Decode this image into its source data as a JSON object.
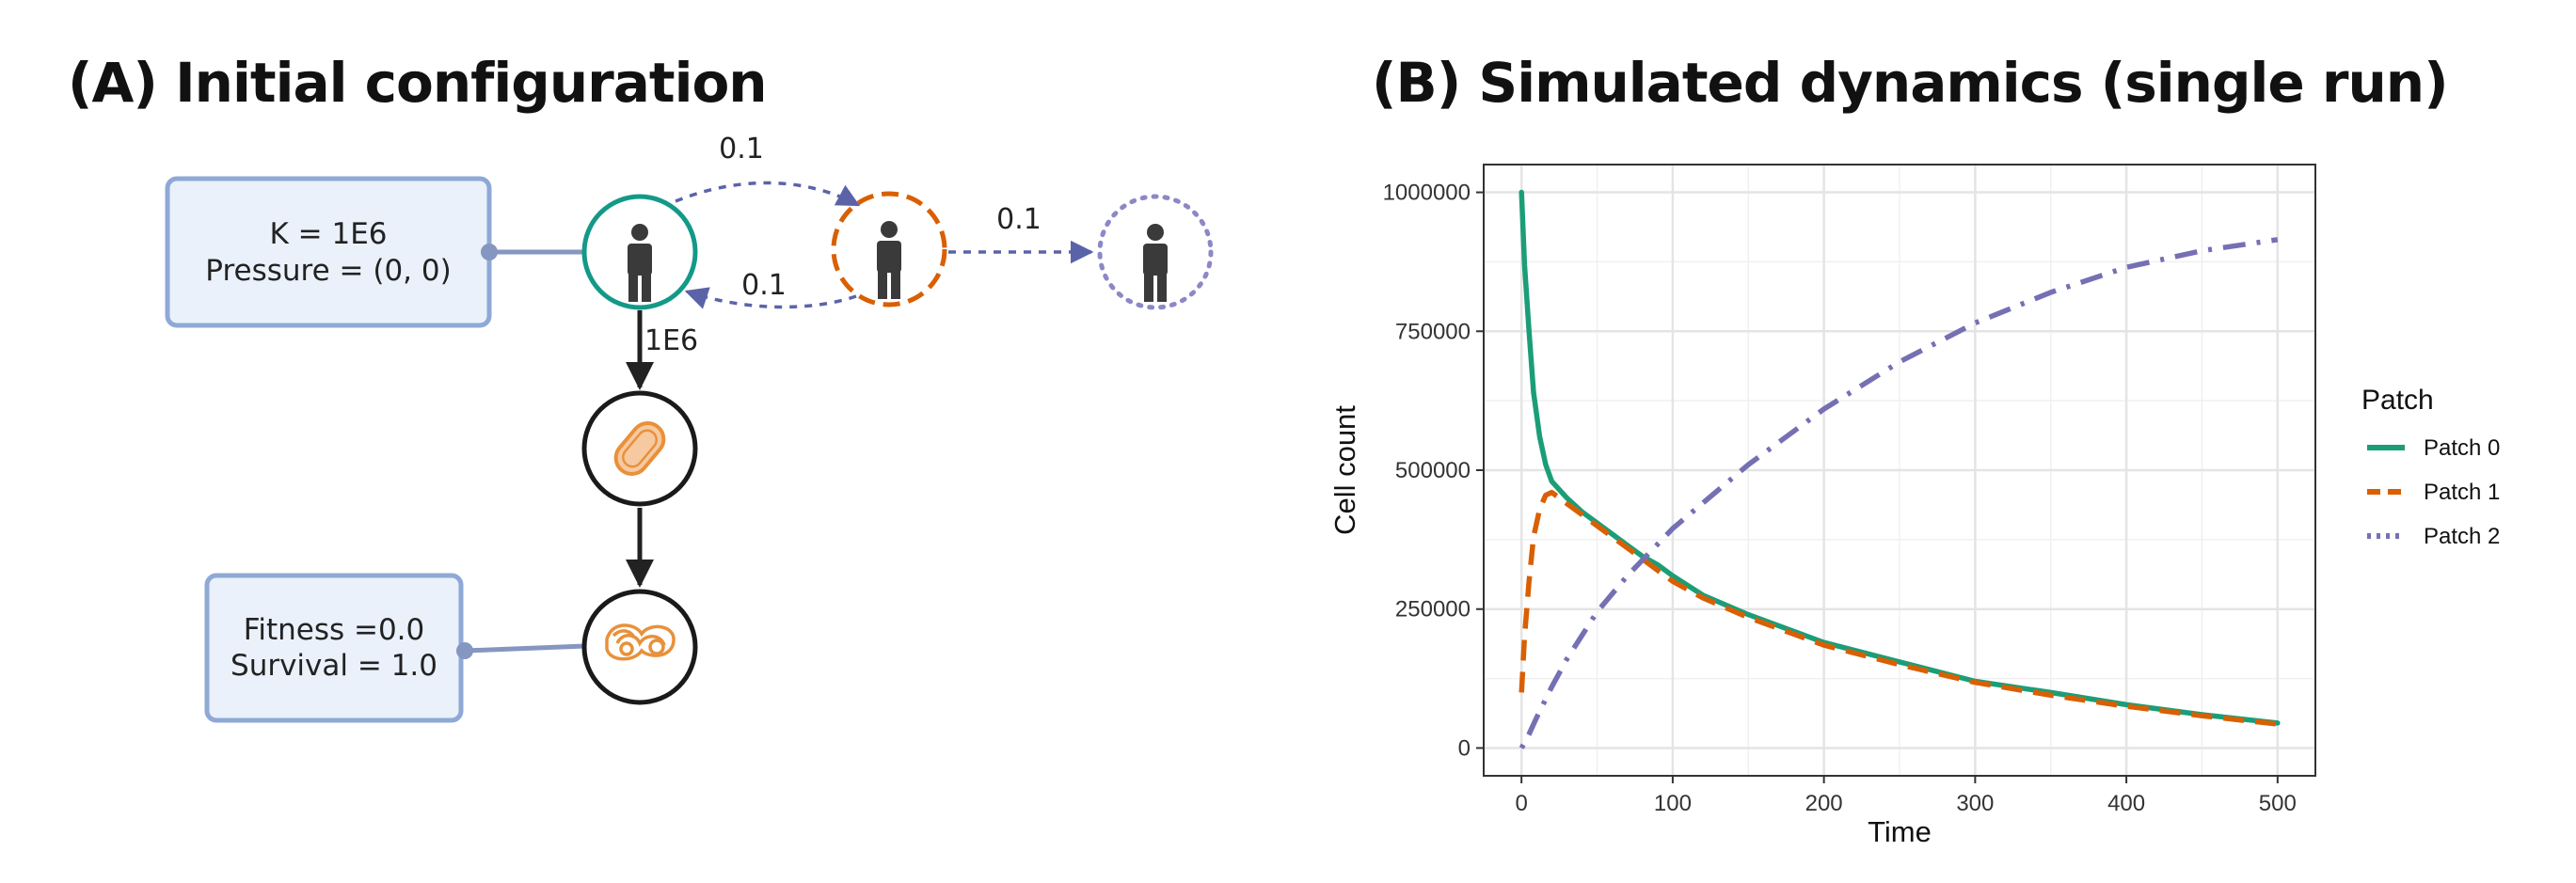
{
  "panel_a": {
    "title": "(A) Initial configuration",
    "host_box": {
      "line1": "K = 1E6",
      "line2": "Pressure = (0, 0)"
    },
    "strain_box": {
      "line1": "Fitness =0.0",
      "line2": "Survival = 1.0"
    },
    "edge_labels": {
      "patch0_to_patch1": "0.1",
      "patch1_to_patch0": "0.1",
      "patch1_to_patch2": "0.1",
      "host_to_bacteria": "1E6"
    },
    "colors": {
      "patch0": "#139988",
      "patch1": "#d95f02",
      "patch2": "#7570b3",
      "box_fill": "#eaf1fb",
      "box_border": "#8fa9d6",
      "arrow": "#5b63a8",
      "bacteria": "#e8913a"
    }
  },
  "panel_b": {
    "title": "(B) Simulated dynamics (single run)"
  },
  "chart_data": {
    "type": "line",
    "title": "(B) Simulated dynamics (single run)",
    "xlabel": "Time",
    "ylabel": "Cell count",
    "xlim": [
      -25,
      525
    ],
    "ylim": [
      -50000,
      1050000
    ],
    "x_ticks": [
      0,
      100,
      200,
      300,
      400,
      500
    ],
    "x_tick_labels": [
      "0",
      "100",
      "200",
      "300",
      "400",
      "500"
    ],
    "y_ticks": [
      0,
      250000,
      500000,
      750000,
      1000000
    ],
    "y_tick_labels": [
      "0",
      "250000",
      "500000",
      "750000",
      "1000000"
    ],
    "grid": true,
    "legend_title": "Patch",
    "legend_position": "right",
    "series": [
      {
        "name": "Patch 0",
        "color": "#1b9e77",
        "dash": "solid",
        "x": [
          0,
          2,
          5,
          8,
          12,
          16,
          20,
          30,
          40,
          50,
          60,
          70,
          80,
          90,
          100,
          120,
          150,
          200,
          250,
          300,
          350,
          400,
          450,
          500
        ],
        "y": [
          1000000,
          870000,
          750000,
          640000,
          560000,
          510000,
          480000,
          450000,
          425000,
          405000,
          385000,
          365000,
          345000,
          330000,
          310000,
          275000,
          240000,
          190000,
          155000,
          120000,
          100000,
          78000,
          60000,
          45000
        ]
      },
      {
        "name": "Patch 1",
        "color": "#d95f02",
        "dash": "dashed",
        "x": [
          0,
          2,
          5,
          8,
          12,
          16,
          20,
          30,
          40,
          50,
          60,
          70,
          80,
          90,
          100,
          120,
          150,
          200,
          250,
          300,
          350,
          400,
          450,
          500
        ],
        "y": [
          100000,
          200000,
          300000,
          380000,
          430000,
          455000,
          460000,
          440000,
          420000,
          400000,
          380000,
          360000,
          340000,
          320000,
          300000,
          270000,
          235000,
          185000,
          150000,
          118000,
          95000,
          75000,
          58000,
          43000
        ]
      },
      {
        "name": "Patch 2",
        "color": "#7570b3",
        "dash": "dotdash",
        "x": [
          0,
          5,
          10,
          20,
          30,
          50,
          70,
          100,
          150,
          200,
          250,
          300,
          350,
          400,
          450,
          500
        ],
        "y": [
          0,
          25000,
          55000,
          110000,
          160000,
          245000,
          310000,
          395000,
          510000,
          610000,
          695000,
          765000,
          820000,
          865000,
          895000,
          915000
        ]
      }
    ]
  }
}
